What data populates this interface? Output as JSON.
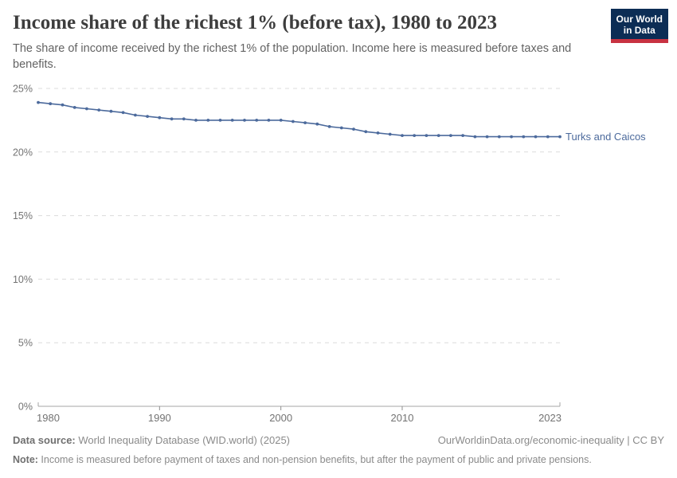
{
  "header": {
    "title": "Income share of the richest 1% (before tax), 1980 to 2023",
    "subtitle": "The share of income received by the richest 1% of the population. Income here is measured before taxes and benefits."
  },
  "logo": {
    "line1": "Our World",
    "line2": "in Data",
    "bg_color": "#0c2d55",
    "accent_color": "#c83241"
  },
  "chart_data": {
    "type": "line",
    "title": "Income share of the richest 1% (before tax), 1980 to 2023",
    "xlabel": "",
    "ylabel": "",
    "xlim": [
      1980,
      2023
    ],
    "ylim": [
      0,
      25
    ],
    "xticks": [
      1980,
      1990,
      2000,
      2010,
      2023
    ],
    "yticks": [
      0,
      5,
      10,
      15,
      20,
      25
    ],
    "ytick_suffix": "%",
    "grid": "horizontal-dashed",
    "legend_position": "end-of-line-label",
    "x": [
      1980,
      1981,
      1982,
      1983,
      1984,
      1985,
      1986,
      1987,
      1988,
      1989,
      1990,
      1991,
      1992,
      1993,
      1994,
      1995,
      1996,
      1997,
      1998,
      1999,
      2000,
      2001,
      2002,
      2003,
      2004,
      2005,
      2006,
      2007,
      2008,
      2009,
      2010,
      2011,
      2012,
      2013,
      2014,
      2015,
      2016,
      2017,
      2018,
      2019,
      2020,
      2021,
      2022,
      2023
    ],
    "series": [
      {
        "name": "Turks and Caicos",
        "color": "#4c6a9c",
        "values": [
          23.9,
          23.8,
          23.7,
          23.5,
          23.4,
          23.3,
          23.2,
          23.1,
          22.9,
          22.8,
          22.7,
          22.6,
          22.6,
          22.5,
          22.5,
          22.5,
          22.5,
          22.5,
          22.5,
          22.5,
          22.5,
          22.4,
          22.3,
          22.2,
          22.0,
          21.9,
          21.8,
          21.6,
          21.5,
          21.4,
          21.3,
          21.3,
          21.3,
          21.3,
          21.3,
          21.3,
          21.2,
          21.2,
          21.2,
          21.2,
          21.2,
          21.2,
          21.2,
          21.2
        ]
      }
    ],
    "colors": {
      "gridline": "#dcdcdc",
      "axis": "#a5a5a5",
      "tick_label": "#737373"
    }
  },
  "footer": {
    "datasource_label": "Data source:",
    "datasource_text": " World Inequality Database (WID.world) (2025)",
    "link_text": "OurWorldinData.org/economic-inequality | CC BY",
    "note_label": "Note:",
    "note_text": " Income is measured before payment of taxes and non-pension benefits, but after the payment of public and private pensions."
  }
}
